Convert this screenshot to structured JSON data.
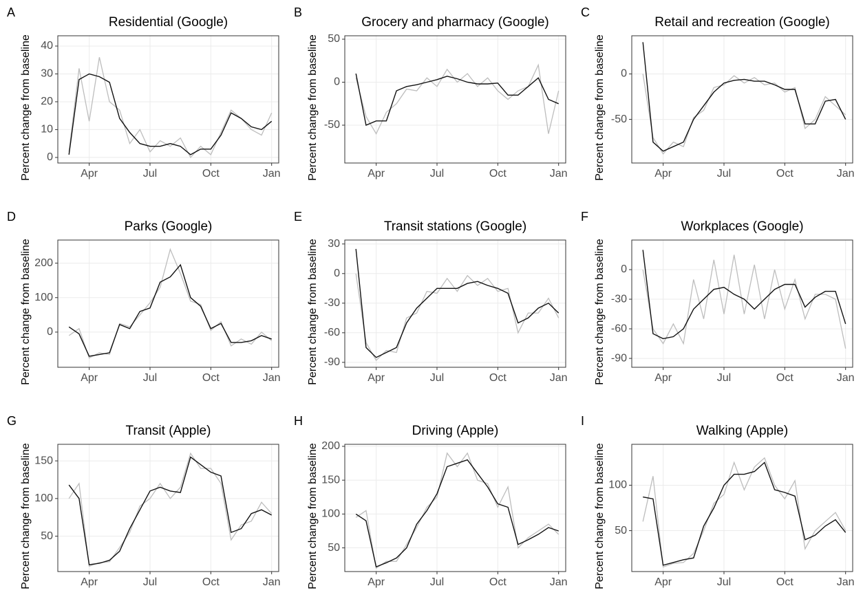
{
  "chart_data": [
    {
      "type": "line",
      "panel": "A",
      "title": "Residential (Google)",
      "ylabel": "Percent change from baseline",
      "x": [
        3,
        3.5,
        4,
        4.5,
        5,
        5.5,
        6,
        6.5,
        7,
        7.5,
        8,
        8.5,
        9,
        9.5,
        10,
        10.5,
        11,
        11.5,
        12,
        12.5,
        13
      ],
      "xlim": [
        2.45,
        13.35
      ],
      "xticks": [
        {
          "value": 4,
          "label": "Apr"
        },
        {
          "value": 7,
          "label": "Jul"
        },
        {
          "value": 10,
          "label": "Oct"
        },
        {
          "value": 13,
          "label": "Jan"
        }
      ],
      "ylim": [
        -2,
        43.7
      ],
      "yticks": [
        0,
        10,
        20,
        30,
        40
      ],
      "grid": true,
      "series": [
        {
          "color": "#bdbdbd",
          "values": [
            2,
            32,
            13,
            36,
            20,
            17,
            5,
            10,
            2,
            6,
            4,
            7,
            0,
            4,
            1,
            9,
            17,
            14,
            10,
            8,
            16
          ]
        },
        {
          "color": "#111111",
          "values": [
            1,
            28,
            30,
            29,
            27,
            14,
            9,
            5,
            4,
            4,
            5,
            4,
            1,
            3,
            3,
            8,
            16,
            14,
            11,
            10,
            13
          ]
        }
      ]
    },
    {
      "type": "line",
      "panel": "B",
      "title": "Grocery and pharmacy (Google)",
      "ylabel": "Percent change from baseline",
      "x": [
        3,
        3.5,
        4,
        4.5,
        5,
        5.5,
        6,
        6.5,
        7,
        7.5,
        8,
        8.5,
        9,
        9.5,
        10,
        10.5,
        11,
        11.5,
        12,
        12.5,
        13
      ],
      "xlim": [
        2.45,
        13.35
      ],
      "xticks": [
        {
          "value": 4,
          "label": "Apr"
        },
        {
          "value": 7,
          "label": "Jul"
        },
        {
          "value": 10,
          "label": "Oct"
        },
        {
          "value": 13,
          "label": "Jan"
        }
      ],
      "ylim": [
        -94,
        54
      ],
      "yticks": [
        -50,
        0,
        50
      ],
      "grid": true,
      "series": [
        {
          "color": "#bdbdbd",
          "values": [
            5,
            -40,
            -60,
            -35,
            -25,
            -8,
            -10,
            5,
            -5,
            15,
            0,
            10,
            -5,
            5,
            -10,
            -20,
            -10,
            -5,
            20,
            -60,
            -10
          ]
        },
        {
          "color": "#111111",
          "values": [
            10,
            -50,
            -45,
            -45,
            -10,
            -5,
            -3,
            0,
            3,
            7,
            4,
            0,
            -2,
            -2,
            -1,
            -15,
            -15,
            -5,
            5,
            -20,
            -25
          ]
        }
      ]
    },
    {
      "type": "line",
      "panel": "C",
      "title": "Retail and recreation (Google)",
      "ylabel": "Percent change from baseline",
      "x": [
        3,
        3.5,
        4,
        4.5,
        5,
        5.5,
        6,
        6.5,
        7,
        7.5,
        8,
        8.5,
        9,
        9.5,
        10,
        10.5,
        11,
        11.5,
        12,
        12.5,
        13
      ],
      "xlim": [
        2.45,
        13.35
      ],
      "xticks": [
        {
          "value": 4,
          "label": "Apr"
        },
        {
          "value": 7,
          "label": "Jul"
        },
        {
          "value": 10,
          "label": "Oct"
        },
        {
          "value": 13,
          "label": "Jan"
        }
      ],
      "ylim": [
        -98,
        42
      ],
      "yticks": [
        -50,
        0
      ],
      "grid": true,
      "series": [
        {
          "color": "#bdbdbd",
          "values": [
            0,
            -70,
            -88,
            -75,
            -80,
            -48,
            -40,
            -15,
            -12,
            -2,
            -10,
            -4,
            -12,
            -10,
            -20,
            -15,
            -60,
            -50,
            -25,
            -35,
            -45
          ]
        },
        {
          "color": "#111111",
          "values": [
            35,
            -75,
            -85,
            -80,
            -75,
            -50,
            -35,
            -20,
            -10,
            -7,
            -6,
            -8,
            -8,
            -12,
            -17,
            -17,
            -55,
            -55,
            -30,
            -28,
            -50
          ]
        }
      ]
    },
    {
      "type": "line",
      "panel": "D",
      "title": "Parks (Google)",
      "ylabel": "Percent change from baseline",
      "x": [
        3,
        3.5,
        4,
        4.5,
        5,
        5.5,
        6,
        6.5,
        7,
        7.5,
        8,
        8.5,
        9,
        9.5,
        10,
        10.5,
        11,
        11.5,
        12,
        12.5,
        13
      ],
      "xlim": [
        2.45,
        13.35
      ],
      "xticks": [
        {
          "value": 4,
          "label": "Apr"
        },
        {
          "value": 7,
          "label": "Jul"
        },
        {
          "value": 10,
          "label": "Oct"
        },
        {
          "value": 13,
          "label": "Jan"
        }
      ],
      "ylim": [
        -102,
        267
      ],
      "yticks": [
        0,
        100,
        200
      ],
      "grid": true,
      "series": [
        {
          "color": "#bdbdbd",
          "values": [
            -10,
            10,
            -75,
            -60,
            -65,
            25,
            15,
            50,
            85,
            130,
            240,
            170,
            90,
            80,
            5,
            30,
            -40,
            -20,
            -35,
            0,
            -25
          ]
        },
        {
          "color": "#111111",
          "values": [
            15,
            -5,
            -70,
            -65,
            -60,
            22,
            10,
            60,
            70,
            145,
            160,
            195,
            100,
            75,
            10,
            25,
            -30,
            -30,
            -25,
            -10,
            -20
          ]
        }
      ]
    },
    {
      "type": "line",
      "panel": "E",
      "title": "Transit stations (Google)",
      "ylabel": "Percent change from baseline",
      "x": [
        3,
        3.5,
        4,
        4.5,
        5,
        5.5,
        6,
        6.5,
        7,
        7.5,
        8,
        8.5,
        9,
        9.5,
        10,
        10.5,
        11,
        11.5,
        12,
        12.5,
        13
      ],
      "xlim": [
        2.45,
        13.35
      ],
      "xticks": [
        {
          "value": 4,
          "label": "Apr"
        },
        {
          "value": 7,
          "label": "Jul"
        },
        {
          "value": 10,
          "label": "Oct"
        },
        {
          "value": 13,
          "label": "Jan"
        }
      ],
      "ylim": [
        -95,
        34
      ],
      "yticks": [
        -90,
        -60,
        -30,
        0,
        30
      ],
      "grid": true,
      "series": [
        {
          "color": "#bdbdbd",
          "values": [
            0,
            -70,
            -88,
            -78,
            -80,
            -45,
            -40,
            -18,
            -20,
            -5,
            -18,
            -2,
            -12,
            -5,
            -18,
            -15,
            -60,
            -40,
            -40,
            -25,
            -45
          ]
        },
        {
          "color": "#111111",
          "values": [
            25,
            -75,
            -85,
            -80,
            -75,
            -50,
            -35,
            -25,
            -15,
            -15,
            -15,
            -10,
            -8,
            -12,
            -15,
            -20,
            -50,
            -45,
            -35,
            -30,
            -40
          ]
        }
      ]
    },
    {
      "type": "line",
      "panel": "F",
      "title": "Workplaces (Google)",
      "ylabel": "Percent change from baseline",
      "x": [
        3,
        3.5,
        4,
        4.5,
        5,
        5.5,
        6,
        6.5,
        7,
        7.5,
        8,
        8.5,
        9,
        9.5,
        10,
        10.5,
        11,
        11.5,
        12,
        12.5,
        13
      ],
      "xlim": [
        2.45,
        13.35
      ],
      "xticks": [
        {
          "value": 4,
          "label": "Apr"
        },
        {
          "value": 7,
          "label": "Jul"
        },
        {
          "value": 10,
          "label": "Oct"
        },
        {
          "value": 13,
          "label": "Jan"
        }
      ],
      "ylim": [
        -99,
        30
      ],
      "yticks": [
        -90,
        -60,
        -30,
        0
      ],
      "grid": true,
      "series": [
        {
          "color": "#bdbdbd",
          "values": [
            0,
            -60,
            -75,
            -55,
            -75,
            -10,
            -50,
            10,
            -45,
            15,
            -45,
            5,
            -50,
            0,
            -40,
            -10,
            -50,
            -25,
            -25,
            -30,
            -80
          ]
        },
        {
          "color": "#111111",
          "values": [
            20,
            -65,
            -70,
            -68,
            -60,
            -40,
            -30,
            -20,
            -18,
            -25,
            -30,
            -40,
            -30,
            -20,
            -15,
            -15,
            -38,
            -28,
            -22,
            -22,
            -55
          ]
        }
      ]
    },
    {
      "type": "line",
      "panel": "G",
      "title": "Transit (Apple)",
      "ylabel": "Percent change from baseline",
      "x": [
        3,
        3.5,
        4,
        4.5,
        5,
        5.5,
        6,
        6.5,
        7,
        7.5,
        8,
        8.5,
        9,
        9.5,
        10,
        10.5,
        11,
        11.5,
        12,
        12.5,
        13
      ],
      "xlim": [
        2.45,
        13.35
      ],
      "xticks": [
        {
          "value": 4,
          "label": "Apr"
        },
        {
          "value": 7,
          "label": "Jul"
        },
        {
          "value": 10,
          "label": "Oct"
        },
        {
          "value": 13,
          "label": "Jan"
        }
      ],
      "ylim": [
        3,
        172
      ],
      "yticks": [
        50,
        100,
        150
      ],
      "grid": true,
      "series": [
        {
          "color": "#bdbdbd",
          "values": [
            100,
            120,
            10,
            15,
            16,
            35,
            55,
            90,
            100,
            120,
            100,
            115,
            160,
            140,
            140,
            120,
            45,
            65,
            70,
            95,
            80
          ]
        },
        {
          "color": "#111111",
          "values": [
            118,
            100,
            12,
            14,
            18,
            30,
            60,
            85,
            110,
            115,
            110,
            108,
            155,
            145,
            135,
            130,
            55,
            60,
            80,
            85,
            78
          ]
        }
      ]
    },
    {
      "type": "line",
      "panel": "H",
      "title": "Driving (Apple)",
      "ylabel": "Percent change from baseline",
      "x": [
        3,
        3.5,
        4,
        4.5,
        5,
        5.5,
        6,
        6.5,
        7,
        7.5,
        8,
        8.5,
        9,
        9.5,
        10,
        10.5,
        11,
        11.5,
        12,
        12.5,
        13
      ],
      "xlim": [
        2.45,
        13.35
      ],
      "xticks": [
        {
          "value": 4,
          "label": "Apr"
        },
        {
          "value": 7,
          "label": "Jul"
        },
        {
          "value": 10,
          "label": "Oct"
        },
        {
          "value": 13,
          "label": "Jan"
        }
      ],
      "ylim": [
        15,
        203
      ],
      "yticks": [
        50,
        100,
        150,
        200
      ],
      "grid": true,
      "series": [
        {
          "color": "#bdbdbd",
          "values": [
            95,
            105,
            20,
            30,
            30,
            55,
            80,
            110,
            125,
            190,
            170,
            190,
            150,
            145,
            110,
            140,
            50,
            65,
            75,
            85,
            70
          ]
        },
        {
          "color": "#111111",
          "values": [
            100,
            90,
            22,
            28,
            35,
            50,
            85,
            105,
            130,
            170,
            175,
            180,
            160,
            140,
            115,
            110,
            55,
            62,
            70,
            80,
            75
          ]
        }
      ]
    },
    {
      "type": "line",
      "panel": "I",
      "title": "Walking (Apple)",
      "ylabel": "Percent change from baseline",
      "x": [
        3,
        3.5,
        4,
        4.5,
        5,
        5.5,
        6,
        6.5,
        7,
        7.5,
        8,
        8.5,
        9,
        9.5,
        10,
        10.5,
        11,
        11.5,
        12,
        12.5,
        13
      ],
      "xlim": [
        2.45,
        13.35
      ],
      "xticks": [
        {
          "value": 4,
          "label": "Apr"
        },
        {
          "value": 7,
          "label": "Jul"
        },
        {
          "value": 10,
          "label": "Oct"
        },
        {
          "value": 13,
          "label": "Jan"
        }
      ],
      "ylim": [
        5,
        145
      ],
      "yticks": [
        50,
        100
      ],
      "grid": true,
      "series": [
        {
          "color": "#bdbdbd",
          "values": [
            60,
            110,
            10,
            14,
            15,
            25,
            50,
            80,
            90,
            125,
            95,
            120,
            130,
            100,
            85,
            105,
            30,
            50,
            60,
            70,
            50
          ]
        },
        {
          "color": "#111111",
          "values": [
            87,
            85,
            12,
            15,
            18,
            20,
            55,
            75,
            100,
            112,
            112,
            115,
            125,
            95,
            92,
            88,
            40,
            45,
            55,
            62,
            48
          ]
        }
      ]
    }
  ]
}
